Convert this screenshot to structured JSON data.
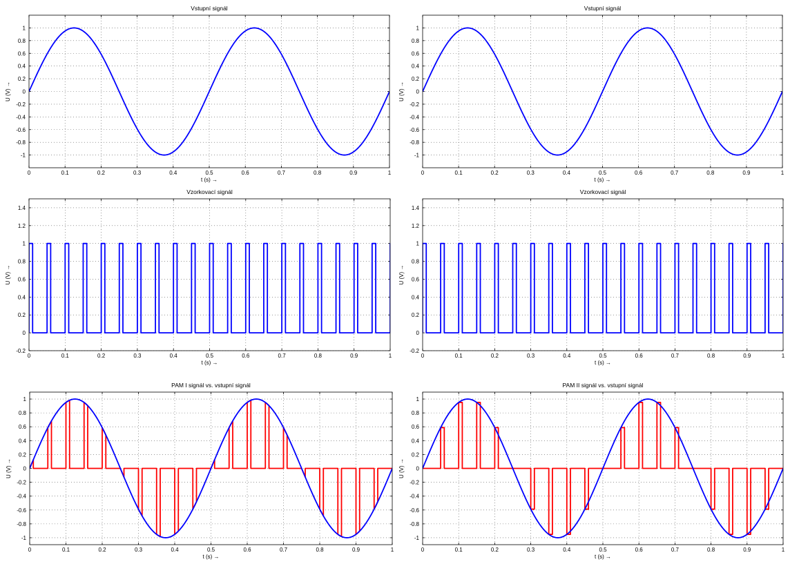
{
  "chart_data": [
    {
      "type": "line",
      "title": "Vstupní signál",
      "xlabel": "t (s) →",
      "ylabel": "U (V) →",
      "xlim": [
        0,
        1
      ],
      "ylim": [
        -1.2,
        1.2
      ],
      "xticks": [
        "0",
        "0.1",
        "0.2",
        "0.3",
        "0.4",
        "0.5",
        "0.6",
        "0.7",
        "0.8",
        "0.9",
        "1"
      ],
      "yticks": [
        "-1",
        "-0.8",
        "-0.6",
        "-0.4",
        "-0.2",
        "0",
        "0.2",
        "0.4",
        "0.6",
        "0.8",
        "1"
      ],
      "grid": true,
      "series": [
        {
          "color": "#0000ff",
          "kind": "sine",
          "amplitude": 1,
          "frequency_hz": 2
        }
      ]
    },
    {
      "type": "line",
      "title": "Vstupní signál",
      "xlabel": "t (s) →",
      "ylabel": "U (V) →",
      "xlim": [
        0,
        1
      ],
      "ylim": [
        -1.2,
        1.2
      ],
      "xticks": [
        "0",
        "0.1",
        "0.2",
        "0.3",
        "0.4",
        "0.5",
        "0.6",
        "0.7",
        "0.8",
        "0.9",
        "1"
      ],
      "yticks": [
        "-1",
        "-0.8",
        "-0.6",
        "-0.4",
        "-0.2",
        "0",
        "0.2",
        "0.4",
        "0.6",
        "0.8",
        "1"
      ],
      "grid": true,
      "series": [
        {
          "color": "#0000ff",
          "kind": "sine",
          "amplitude": 1,
          "frequency_hz": 2
        }
      ]
    },
    {
      "type": "line",
      "title": "Vzorkovací signál",
      "xlabel": "t (s) →",
      "ylabel": "U (V) →",
      "xlim": [
        0,
        1
      ],
      "ylim": [
        -0.2,
        1.5
      ],
      "xticks": [
        "0",
        "0.1",
        "0.2",
        "0.3",
        "0.4",
        "0.5",
        "0.6",
        "0.7",
        "0.8",
        "0.9",
        "1"
      ],
      "yticks": [
        "-0.2",
        "0",
        "0.2",
        "0.4",
        "0.6",
        "0.8",
        "1",
        "1.2",
        "1.4"
      ],
      "grid": true,
      "series": [
        {
          "color": "#0000ff",
          "kind": "pulse_train",
          "period_s": 0.05,
          "pulse_width_s": 0.01,
          "first_pulse_s": 0.0,
          "high": 1,
          "low": 0
        }
      ]
    },
    {
      "type": "line",
      "title": "Vzorkovací signál",
      "xlabel": "t (s) →",
      "ylabel": "U (V) →",
      "xlim": [
        0,
        1
      ],
      "ylim": [
        -0.2,
        1.5
      ],
      "xticks": [
        "0",
        "0.1",
        "0.2",
        "0.3",
        "0.4",
        "0.5",
        "0.6",
        "0.7",
        "0.8",
        "0.9",
        "1"
      ],
      "yticks": [
        "-0.2",
        "0",
        "0.2",
        "0.4",
        "0.6",
        "0.8",
        "1",
        "1.2",
        "1.4"
      ],
      "grid": true,
      "series": [
        {
          "color": "#0000ff",
          "kind": "pulse_train",
          "period_s": 0.05,
          "pulse_width_s": 0.01,
          "first_pulse_s": 0.0,
          "high": 1,
          "low": 0
        }
      ]
    },
    {
      "type": "line",
      "title": "PAM I signál vs. vstupní signál",
      "xlabel": "t (s) →",
      "ylabel": "U (V) →",
      "xlim": [
        0,
        1
      ],
      "ylim": [
        -1.1,
        1.1
      ],
      "xticks": [
        "0",
        "0.1",
        "0.2",
        "0.3",
        "0.4",
        "0.5",
        "0.6",
        "0.7",
        "0.8",
        "0.9",
        "1"
      ],
      "yticks": [
        "-1",
        "-0.8",
        "-0.6",
        "-0.4",
        "-0.2",
        "0",
        "0.2",
        "0.4",
        "0.6",
        "0.8",
        "1"
      ],
      "grid": true,
      "series": [
        {
          "color": "#ff0000",
          "kind": "pam_natural",
          "period_s": 0.05,
          "pulse_width_s": 0.01,
          "first_pulse_s": 0.0
        },
        {
          "color": "#0000ff",
          "kind": "sine",
          "amplitude": 1,
          "frequency_hz": 2
        }
      ]
    },
    {
      "type": "line",
      "title": "PAM II signál vs. vstupní signál",
      "xlabel": "t (s) →",
      "ylabel": "U (V) →",
      "xlim": [
        0,
        1
      ],
      "ylim": [
        -1.1,
        1.1
      ],
      "xticks": [
        "0",
        "0.1",
        "0.2",
        "0.3",
        "0.4",
        "0.5",
        "0.6",
        "0.7",
        "0.8",
        "0.9",
        "1"
      ],
      "yticks": [
        "-1",
        "-0.8",
        "-0.6",
        "-0.4",
        "-0.2",
        "0",
        "0.2",
        "0.4",
        "0.6",
        "0.8",
        "1"
      ],
      "grid": true,
      "series": [
        {
          "color": "#ff0000",
          "kind": "pam_flat_top",
          "period_s": 0.05,
          "pulse_width_s": 0.01,
          "first_pulse_s": 0.0
        },
        {
          "color": "#0000ff",
          "kind": "sine",
          "amplitude": 1,
          "frequency_hz": 2
        }
      ]
    }
  ]
}
